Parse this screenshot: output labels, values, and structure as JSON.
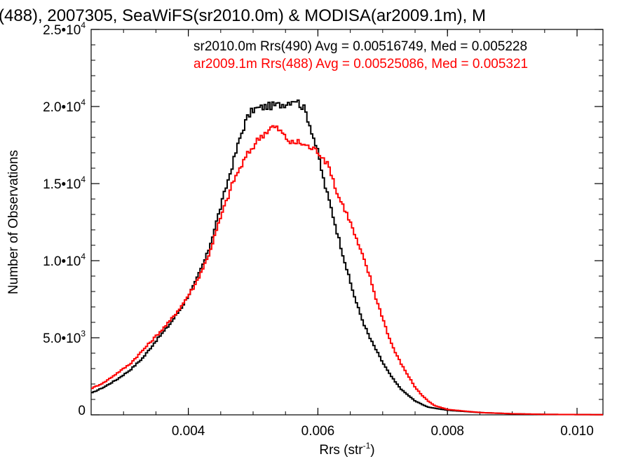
{
  "chart_data": {
    "type": "line",
    "title": "(488), 2007305, SeaWiFS(sr2010.0m) & MODISA(ar2009.1m), M",
    "xlabel": "Rrs (str",
    "xlabel_sup": "-1",
    "xlabel_end": ")",
    "ylabel": "Number of Observations",
    "xlim": [
      0.0025,
      0.0104
    ],
    "ylim": [
      0,
      25000
    ],
    "xticks": [
      {
        "value": 0.004,
        "label": "0.004"
      },
      {
        "value": 0.006,
        "label": "0.006"
      },
      {
        "value": 0.008,
        "label": "0.008"
      },
      {
        "value": 0.01,
        "label": "0.010"
      }
    ],
    "yticks": [
      {
        "value": 0,
        "label": "0",
        "sup": ""
      },
      {
        "value": 5000,
        "label": "5.0•10",
        "sup": "3"
      },
      {
        "value": 10000,
        "label": "1.0•10",
        "sup": "4"
      },
      {
        "value": 15000,
        "label": "1.5•10",
        "sup": "4"
      },
      {
        "value": 20000,
        "label": "2.0•10",
        "sup": "4"
      },
      {
        "value": 25000,
        "label": "2.5•10",
        "sup": "4"
      }
    ],
    "grid": false,
    "legend_placement": "top-right",
    "series": [
      {
        "name": "sr2010.0m Rrs(490) Avg = 0.00516749, Med = 0.005228",
        "color": "#000000",
        "points": [
          [
            0.0025,
            1400
          ],
          [
            0.0027,
            1800
          ],
          [
            0.0029,
            2300
          ],
          [
            0.0031,
            2900
          ],
          [
            0.0033,
            3700
          ],
          [
            0.0035,
            4800
          ],
          [
            0.0037,
            5800
          ],
          [
            0.0039,
            7000
          ],
          [
            0.0041,
            8500
          ],
          [
            0.0043,
            10500
          ],
          [
            0.0045,
            13500
          ],
          [
            0.0047,
            16500
          ],
          [
            0.0048,
            18000
          ],
          [
            0.0049,
            19200
          ],
          [
            0.005,
            19800
          ],
          [
            0.0052,
            20000
          ],
          [
            0.0054,
            20100
          ],
          [
            0.0055,
            20200
          ],
          [
            0.00565,
            20500
          ],
          [
            0.0058,
            19800
          ],
          [
            0.0059,
            18500
          ],
          [
            0.006,
            17000
          ],
          [
            0.0061,
            15000
          ],
          [
            0.0062,
            13500
          ],
          [
            0.0063,
            11800
          ],
          [
            0.0064,
            10200
          ],
          [
            0.0065,
            8600
          ],
          [
            0.0066,
            7200
          ],
          [
            0.0067,
            6000
          ],
          [
            0.0068,
            5000
          ],
          [
            0.0069,
            4200
          ],
          [
            0.007,
            3400
          ],
          [
            0.0071,
            2700
          ],
          [
            0.0072,
            2100
          ],
          [
            0.0073,
            1600
          ],
          [
            0.0075,
            900
          ],
          [
            0.0077,
            500
          ],
          [
            0.008,
            300
          ],
          [
            0.0085,
            150
          ],
          [
            0.009,
            70
          ],
          [
            0.0095,
            30
          ],
          [
            0.0104,
            10
          ]
        ]
      },
      {
        "name": "ar2009.1m Rrs(488) Avg = 0.00525086, Med = 0.005321",
        "color": "#ff0000",
        "points": [
          [
            0.0025,
            1700
          ],
          [
            0.0027,
            2100
          ],
          [
            0.0029,
            2700
          ],
          [
            0.0031,
            3300
          ],
          [
            0.0033,
            4200
          ],
          [
            0.0035,
            5100
          ],
          [
            0.0037,
            6000
          ],
          [
            0.0039,
            7100
          ],
          [
            0.0041,
            8400
          ],
          [
            0.0043,
            10200
          ],
          [
            0.0045,
            12800
          ],
          [
            0.0047,
            15200
          ],
          [
            0.0049,
            16800
          ],
          [
            0.0051,
            18000
          ],
          [
            0.0053,
            18700
          ],
          [
            0.0054,
            18500
          ],
          [
            0.0055,
            18000
          ],
          [
            0.0056,
            17600
          ],
          [
            0.0057,
            17700
          ],
          [
            0.0058,
            17500
          ],
          [
            0.0059,
            17300
          ],
          [
            0.006,
            17100
          ],
          [
            0.0061,
            16600
          ],
          [
            0.0062,
            15800
          ],
          [
            0.0063,
            14300
          ],
          [
            0.0064,
            13500
          ],
          [
            0.0065,
            12500
          ],
          [
            0.0066,
            11300
          ],
          [
            0.0067,
            10200
          ],
          [
            0.0068,
            9000
          ],
          [
            0.0069,
            7500
          ],
          [
            0.007,
            6300
          ],
          [
            0.0071,
            5000
          ],
          [
            0.0072,
            4000
          ],
          [
            0.0073,
            3200
          ],
          [
            0.0074,
            2500
          ],
          [
            0.0075,
            1800
          ],
          [
            0.0076,
            1300
          ],
          [
            0.0077,
            900
          ],
          [
            0.0078,
            600
          ],
          [
            0.008,
            350
          ],
          [
            0.0085,
            150
          ],
          [
            0.009,
            70
          ],
          [
            0.0095,
            30
          ],
          [
            0.0104,
            10
          ]
        ]
      }
    ]
  }
}
